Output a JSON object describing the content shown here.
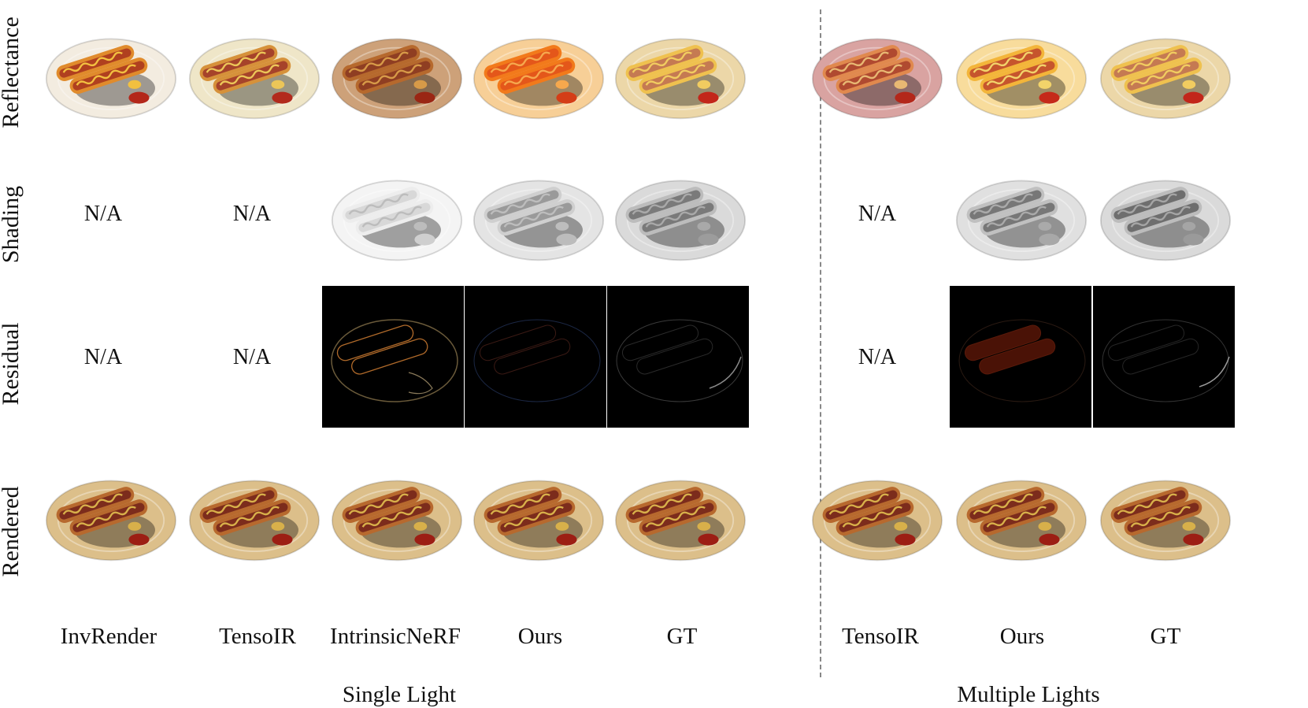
{
  "row_labels": [
    "Reflectance",
    "Shading",
    "Residual",
    "Rendered"
  ],
  "single_light": {
    "group_label": "Single Light",
    "methods": [
      "InvRender",
      "TensoIR",
      "IntrinsicNeRF",
      "Ours",
      "GT"
    ]
  },
  "multiple_lights": {
    "group_label": "Multiple Lights",
    "methods": [
      "TensoIR",
      "Ours",
      "GT"
    ]
  },
  "na_text": "N/A",
  "colors": {
    "reflectance_invrender": "#f3ece0",
    "reflectance_tensoir": "#efe6c8",
    "reflectance_intrinsicnerf": "#cda179",
    "reflectance_ours": "#f7cf97",
    "reflectance_gt": "#ecd7a8",
    "reflectance_multi_tensoir": "#d9a3a1",
    "reflectance_multi_ours": "#f8dc9c",
    "reflectance_multi_gt": "#ecd7a8",
    "shading_plate": "#e4e4e4",
    "rendered_plate": "#dcbf8a",
    "sausage": "#a0452a",
    "bun": "#d4872f",
    "ketchup": "#b3271a",
    "mustard": "#e0b340"
  }
}
